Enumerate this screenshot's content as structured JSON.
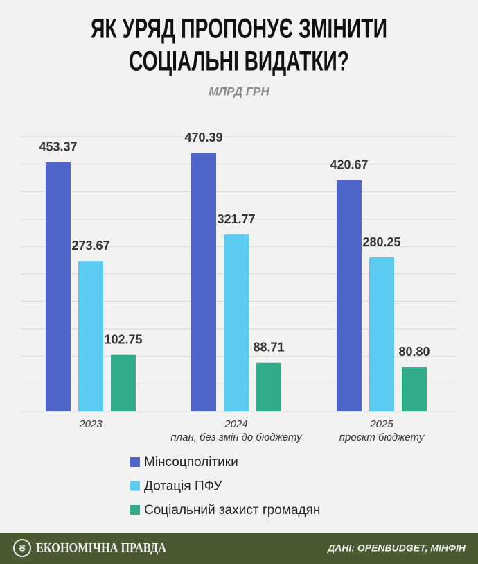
{
  "chart_data": {
    "type": "bar",
    "title": [
      "ЯК УРЯД ПРОПОНУЄ ЗМІНИТИ",
      "СОЦІАЛЬНІ ВИДАТКИ?"
    ],
    "subtitle": "МЛРД ГРН",
    "categories": [
      "2023",
      "2024",
      "2025"
    ],
    "category_notes": [
      null,
      "план, без змін до бюджету",
      "проєкт бюджету"
    ],
    "series": [
      {
        "name": "Мінсоцполітики",
        "color": "#5066c8",
        "values": [
          453.37,
          470.39,
          420.67
        ],
        "value_labels": [
          "453.37",
          "470.39",
          "420.67"
        ]
      },
      {
        "name": "Дотація ПФУ",
        "color": "#5ccbf2",
        "values": [
          273.67,
          321.77,
          280.25
        ],
        "value_labels": [
          "273.67",
          "321.77",
          "280.25"
        ]
      },
      {
        "name": "Соціальний захист громадян",
        "color": "#31ac8a",
        "values": [
          102.75,
          88.71,
          80.8
        ],
        "value_labels": [
          "102.75",
          "88.71",
          "80.80"
        ]
      }
    ],
    "ylim": [
      0,
      500
    ],
    "yticks": [
      0,
      50,
      100,
      150,
      200,
      250,
      300,
      350,
      400,
      450,
      500
    ],
    "grid": true
  },
  "footer": {
    "brand": "ЕКОНОМІЧНА ПРАВДА",
    "source": "ДАНІ: OPENBUDGET, МІНФІН"
  }
}
